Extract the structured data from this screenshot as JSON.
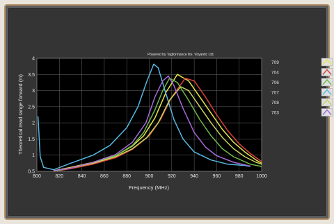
{
  "chart_data": {
    "type": "line",
    "title": "Powered by Tagformance lite, Voyantic Ltd.",
    "xlabel": "Frequency (MHz)",
    "ylabel": "Theoretical read range forward (m)",
    "xlim": [
      800,
      1000
    ],
    "ylim": [
      0.5,
      4
    ],
    "xticks": [
      "800",
      "820",
      "840",
      "860",
      "880",
      "900",
      "920",
      "940",
      "960",
      "980",
      "1000"
    ],
    "yticks": [
      "0.5",
      "1",
      "1.5",
      "2",
      "2.5",
      "3",
      "3.5",
      "4"
    ],
    "grid": true,
    "legend_position": "right",
    "series": [
      {
        "name": "709",
        "color": "#e6e64a",
        "points": [
          [
            815,
            0.52
          ],
          [
            830,
            0.62
          ],
          [
            850,
            0.78
          ],
          [
            870,
            0.98
          ],
          [
            885,
            1.28
          ],
          [
            895,
            1.6
          ],
          [
            905,
            2.15
          ],
          [
            915,
            2.95
          ],
          [
            925,
            3.5
          ],
          [
            935,
            3.3
          ],
          [
            945,
            2.8
          ],
          [
            955,
            2.3
          ],
          [
            965,
            1.8
          ],
          [
            975,
            1.4
          ],
          [
            985,
            1.1
          ],
          [
            995,
            0.85
          ],
          [
            1000,
            0.75
          ]
        ]
      },
      {
        "name": "704",
        "color": "#d9413a",
        "points": [
          [
            815,
            0.5
          ],
          [
            830,
            0.58
          ],
          [
            850,
            0.72
          ],
          [
            870,
            0.92
          ],
          [
            885,
            1.18
          ],
          [
            900,
            1.6
          ],
          [
            910,
            2.1
          ],
          [
            920,
            2.8
          ],
          [
            932,
            3.38
          ],
          [
            940,
            3.3
          ],
          [
            950,
            2.8
          ],
          [
            960,
            2.25
          ],
          [
            970,
            1.75
          ],
          [
            980,
            1.35
          ],
          [
            990,
            1.05
          ],
          [
            1000,
            0.8
          ]
        ]
      },
      {
        "name": "706",
        "color": "#6aba4a",
        "points": [
          [
            815,
            0.5
          ],
          [
            830,
            0.6
          ],
          [
            850,
            0.76
          ],
          [
            870,
            0.98
          ],
          [
            885,
            1.3
          ],
          [
            895,
            1.7
          ],
          [
            905,
            2.4
          ],
          [
            912,
            3.0
          ],
          [
            918,
            3.38
          ],
          [
            925,
            3.25
          ],
          [
            935,
            2.7
          ],
          [
            945,
            2.1
          ],
          [
            955,
            1.6
          ],
          [
            965,
            1.2
          ],
          [
            975,
            0.95
          ],
          [
            990,
            0.72
          ],
          [
            1000,
            0.65
          ]
        ]
      },
      {
        "name": "707",
        "color": "#57b6e0",
        "points": [
          [
            801,
            2.2
          ],
          [
            803,
            0.95
          ],
          [
            806,
            0.62
          ],
          [
            815,
            0.55
          ],
          [
            830,
            0.75
          ],
          [
            850,
            1.0
          ],
          [
            865,
            1.3
          ],
          [
            880,
            1.85
          ],
          [
            890,
            2.5
          ],
          [
            898,
            3.3
          ],
          [
            904,
            3.82
          ],
          [
            908,
            3.7
          ],
          [
            914,
            3.0
          ],
          [
            922,
            2.1
          ],
          [
            930,
            1.5
          ],
          [
            940,
            1.1
          ],
          [
            955,
            0.85
          ],
          [
            970,
            0.72
          ],
          [
            985,
            0.68
          ],
          [
            990,
            0.65
          ]
        ]
      },
      {
        "name": "708",
        "color": "#c9d45a",
        "points": [
          [
            815,
            0.52
          ],
          [
            830,
            0.6
          ],
          [
            850,
            0.75
          ],
          [
            870,
            0.95
          ],
          [
            885,
            1.2
          ],
          [
            898,
            1.55
          ],
          [
            908,
            2.0
          ],
          [
            918,
            2.7
          ],
          [
            928,
            3.12
          ],
          [
            935,
            3.0
          ],
          [
            945,
            2.5
          ],
          [
            955,
            2.0
          ],
          [
            965,
            1.55
          ],
          [
            975,
            1.2
          ],
          [
            985,
            0.95
          ],
          [
            995,
            0.78
          ],
          [
            1000,
            0.72
          ]
        ]
      },
      {
        "name": "703",
        "color": "#a46ad8",
        "points": [
          [
            815,
            0.52
          ],
          [
            830,
            0.6
          ],
          [
            850,
            0.78
          ],
          [
            870,
            1.02
          ],
          [
            885,
            1.4
          ],
          [
            897,
            2.0
          ],
          [
            905,
            2.8
          ],
          [
            912,
            3.3
          ],
          [
            917,
            3.45
          ],
          [
            922,
            3.15
          ],
          [
            930,
            2.45
          ],
          [
            940,
            1.7
          ],
          [
            950,
            1.25
          ],
          [
            960,
            0.98
          ],
          [
            975,
            0.78
          ],
          [
            990,
            0.66
          ]
        ]
      }
    ]
  }
}
